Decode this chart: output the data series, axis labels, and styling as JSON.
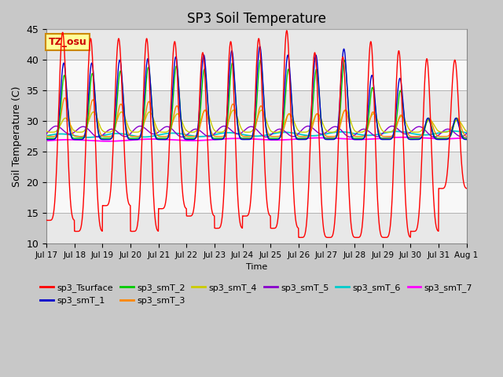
{
  "title": "SP3 Soil Temperature",
  "ylabel": "Soil Temperature (C)",
  "xlabel": "Time",
  "ylim": [
    10,
    45
  ],
  "background_color": "#e8e8e8",
  "plot_bg_color": "#ffffff",
  "annotation_text": "TZ_osu",
  "annotation_bg": "#ffff99",
  "annotation_border": "#cc8800",
  "annotation_text_color": "#cc0000",
  "xtick_labels": [
    "Jul 17",
    "Jul 18",
    "Jul 19",
    "Jul 20",
    "Jul 21",
    "Jul 22",
    "Jul 23",
    "Jul 24",
    "Jul 25",
    "Jul 26",
    "Jul 27",
    "Jul 28",
    "Jul 29",
    "Jul 30",
    "Jul 31",
    "Aug 1"
  ],
  "series_colors": {
    "sp3_Tsurface": "#ff0000",
    "sp3_smT_1": "#0000cc",
    "sp3_smT_2": "#00cc00",
    "sp3_smT_3": "#ff8800",
    "sp3_smT_4": "#cccc00",
    "sp3_smT_5": "#8800cc",
    "sp3_smT_6": "#00cccc",
    "sp3_smT_7": "#ff00ff"
  },
  "n_days": 15,
  "points_per_day": 144,
  "surface_day_max": [
    44.5,
    43.5,
    43.5,
    43.5,
    43.0,
    41.2,
    43.0,
    43.5,
    44.8,
    41.2,
    40.5,
    43.0,
    41.5,
    40.2,
    40.0
  ],
  "surface_day_min": [
    13.8,
    12.0,
    16.2,
    12.0,
    15.7,
    14.5,
    12.5,
    14.5,
    12.5,
    11.0,
    11.0,
    11.0,
    11.0,
    12.0,
    19.0
  ],
  "smT1_day_max": [
    39.5,
    39.5,
    40.0,
    40.2,
    40.5,
    40.8,
    41.5,
    42.2,
    40.8,
    40.8,
    41.8,
    37.5,
    37.0,
    30.5,
    30.5
  ],
  "smT2_day_max": [
    37.5,
    37.8,
    38.2,
    38.8,
    39.0,
    38.5,
    39.5,
    40.0,
    38.5,
    38.5,
    40.0,
    35.5,
    35.0,
    30.5,
    30.5
  ],
  "smT3_day_max": [
    33.8,
    33.5,
    32.8,
    33.2,
    32.5,
    31.8,
    32.8,
    32.5,
    31.2,
    31.2,
    31.8,
    31.5,
    31.0,
    30.5,
    30.5
  ],
  "smT4_day_max": [
    30.5,
    31.5,
    31.5,
    31.5,
    31.2,
    31.8,
    31.8,
    31.8,
    31.2,
    31.2,
    31.8,
    31.2,
    30.8,
    30.2,
    30.2
  ],
  "smT5_base": 28.3,
  "smT5_amp": 0.7,
  "smT6_base": 27.6,
  "smT6_amp": 0.3,
  "smT7_base": 26.8,
  "smT7_amp": 0.15,
  "grid_colors": [
    "#ffffff",
    "#e0e0e0"
  ]
}
